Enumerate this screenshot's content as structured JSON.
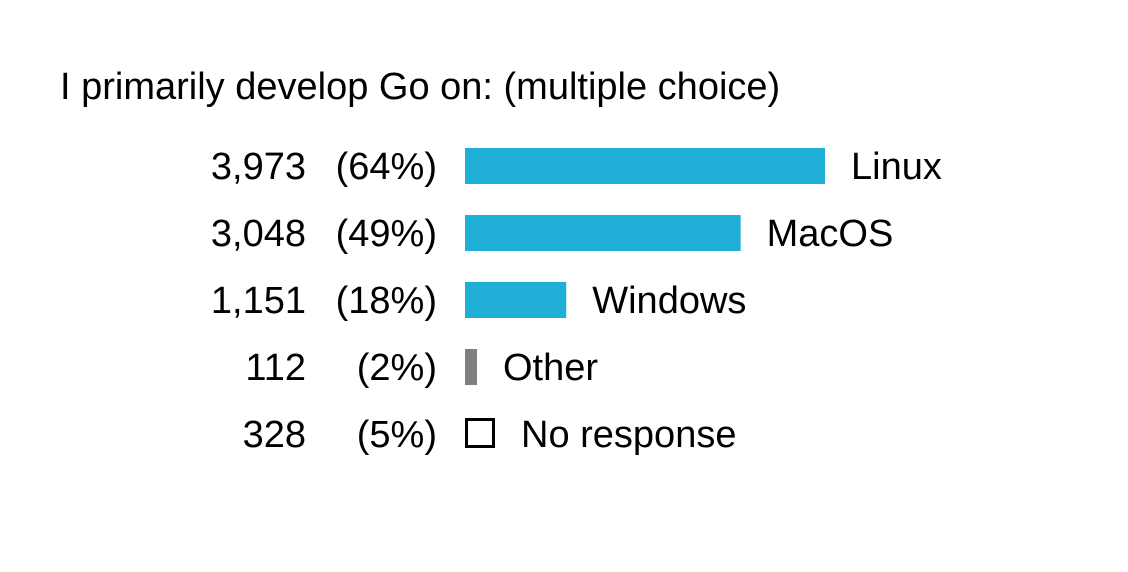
{
  "chart_data": {
    "type": "bar",
    "orientation": "horizontal",
    "title": "I primarily develop Go on: (multiple choice)",
    "categories": [
      "Linux",
      "MacOS",
      "Windows",
      "Other",
      "No response"
    ],
    "counts": [
      "3,973",
      "3,048",
      "1,151",
      "112",
      "328"
    ],
    "percent_labels": [
      "(64%)",
      "(49%)",
      "(18%)",
      "(2%)",
      "(5%)"
    ],
    "values": [
      3973,
      3048,
      1151,
      112,
      328
    ],
    "percents": [
      64,
      49,
      18,
      2,
      5
    ],
    "bar_styles": [
      "filled",
      "filled",
      "filled",
      "filled",
      "outline"
    ],
    "colors": [
      "#1eaed6",
      "#1eaed6",
      "#1eaed6",
      "#808080",
      "#000000"
    ],
    "grid": false,
    "legend": "none"
  }
}
